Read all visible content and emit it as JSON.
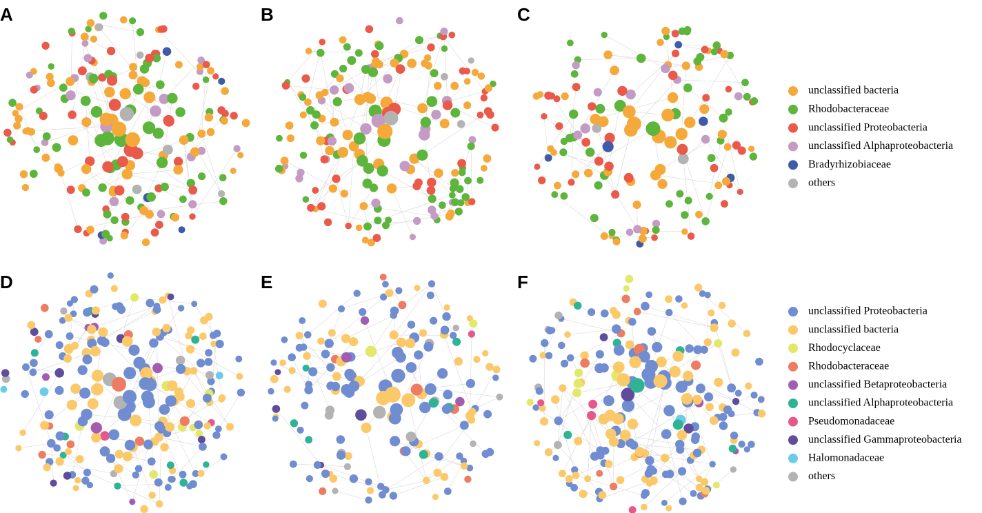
{
  "panels": [
    {
      "label": "A"
    },
    {
      "label": "B"
    },
    {
      "label": "C"
    },
    {
      "label": "D"
    },
    {
      "label": "E"
    },
    {
      "label": "F"
    }
  ],
  "legend_top": [
    {
      "name": "unclassified bacteria",
      "color": "#f5a93b"
    },
    {
      "name": "Rhodobacteraceae",
      "color": "#5db53c"
    },
    {
      "name": "unclassified Proteobacteria",
      "color": "#ea5a4a"
    },
    {
      "name": "unclassified Alphaproteobacteria",
      "color": "#c39bc4"
    },
    {
      "name": "Bradyrhizobiaceae",
      "color": "#3f5aa8"
    },
    {
      "name": "others",
      "color": "#b3b3b3"
    }
  ],
  "legend_bottom": [
    {
      "name": "unclassified Proteobacteria",
      "color": "#6f8dd0"
    },
    {
      "name": "unclassified bacteria",
      "color": "#fbc96a"
    },
    {
      "name": "Rhodocyclaceae",
      "color": "#e3e86a"
    },
    {
      "name": "Rhodobacteraceae",
      "color": "#ee7c63"
    },
    {
      "name": "unclassified Betaproteobacteria",
      "color": "#a25cb0"
    },
    {
      "name": "unclassified Alphaproteobacteria",
      "color": "#2eb394"
    },
    {
      "name": "Pseudomonadaceae",
      "color": "#e8578a"
    },
    {
      "name": "unclassified Gammaproteobacteria",
      "color": "#5f4d9c"
    },
    {
      "name": "Halomonadaceae",
      "color": "#6ccbe8"
    },
    {
      "name": "others",
      "color": "#b3b3b3"
    }
  ]
}
